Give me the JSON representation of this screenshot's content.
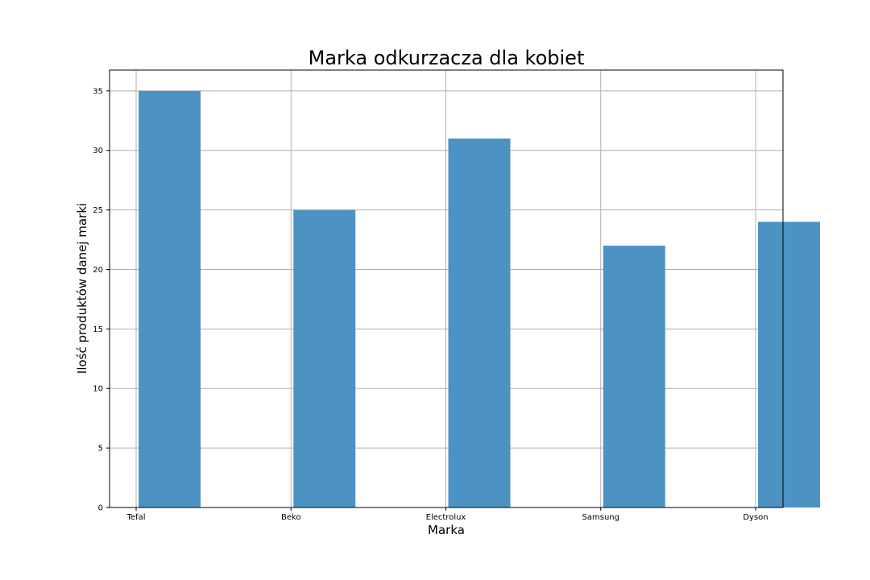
{
  "chart_data": {
    "type": "bar",
    "title": "Marka odkurzacza dla kobiet",
    "xlabel": "Marka",
    "ylabel": "Ilość produktów danej marki",
    "x_tick_labels": [
      "Tefal",
      "Beko",
      "Electrolux",
      "Samsung",
      "Dyson"
    ],
    "values": [
      35,
      25,
      31,
      22,
      24
    ],
    "ylim": [
      0,
      36.75
    ],
    "yticks": [
      0,
      5,
      10,
      15,
      20,
      25,
      30,
      35
    ],
    "grid": true,
    "bar_color": "#4c92c3"
  }
}
